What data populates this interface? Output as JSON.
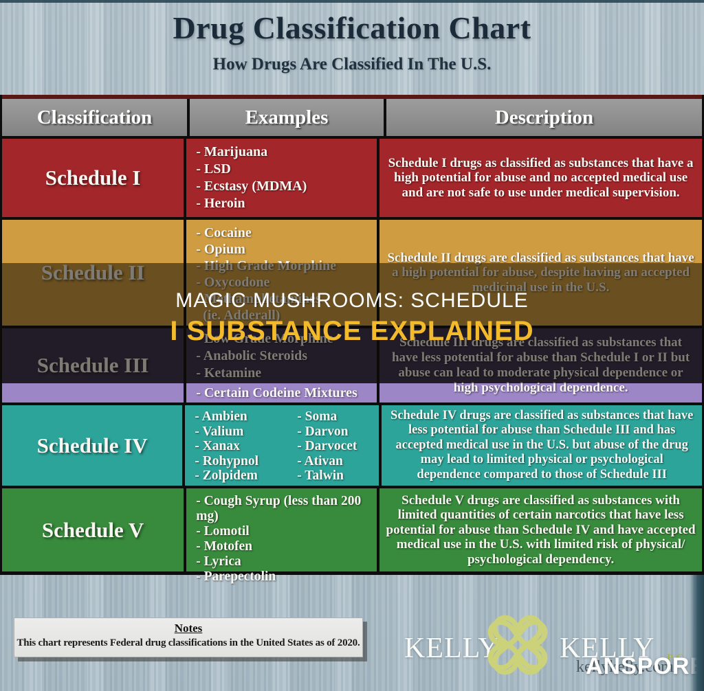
{
  "title": "Drug Classification Chart",
  "subtitle": "How Drugs Are Classified In The U.S.",
  "chart_data": {
    "type": "table",
    "columns": [
      "Classification",
      "Examples",
      "Description"
    ],
    "rows": [
      {
        "classification": "Schedule I",
        "color": "#a3262b",
        "examples": [
          "- Marijuana",
          "- LSD",
          "- Ecstasy (MDMA)",
          "- Heroin"
        ],
        "description": "Schedule I drugs as classified as substances that have a high potential for abuse and no accepted medical use and are not safe to use under medical supervision."
      },
      {
        "classification": "Schedule II",
        "color": "#d09c41",
        "examples": [
          "- Cocaine",
          "- Opium",
          "- High Grade Morphine",
          "- Oxycodone",
          "- Methamphetamines",
          "  (ie. Adderall)"
        ],
        "description": "Schedule II drugs are classified as substances that have a high potential for abuse, despite having an accepted medicinal use in the U.S."
      },
      {
        "classification": "Schedule III",
        "color": "#3a3052",
        "band_color": "#9d86c6",
        "examples": [
          "- Low Grade Morphine",
          "- Anabolic Steroids",
          "- Ketamine",
          "- Certain Codeine Mixtures"
        ],
        "description": "Schedule III drugs are classified as substances that have less potential for abuse than Schedule I or II but abuse can lead to moderate physical dependence or high psychological dependence."
      },
      {
        "classification": "Schedule IV",
        "color": "#2da49a",
        "examples": [
          "- Ambien",
          "- Valium",
          "- Xanax",
          "- Rohypnol",
          "- Zolpidem"
        ],
        "examples2": [
          "- Soma",
          "- Darvon",
          "- Darvocet",
          "- Ativan",
          "- Talwin"
        ],
        "description": "Schedule IV drugs are classified as substances that have less potential for abuse than Schedule III and has accepted medical use in the U.S. but abuse of the drug may lead to limited physical or psychological dependence compared to those of Schedule III"
      },
      {
        "classification": "Schedule V",
        "color": "#388a3c",
        "examples": [
          "- Cough Syrup (less than 200 mg)",
          "- Lomotil",
          "- Motofen",
          "- Lyrica",
          "- Parepectolin"
        ],
        "description": "Schedule V drugs are classified as substances with limited quantities of certain narcotics  that have less potential for abuse than Schedule IV and have accepted medical use in the U.S. with limited risk of physical/ psychological dependency."
      }
    ]
  },
  "overlay": {
    "line1": "MAGIC MUSHROOMS: SCHEDULE",
    "line2": "I SUBSTANCE EXPLAINED",
    "line2_color": "#f3bb2b",
    "scrim_color": "rgba(14,10,2,0.52)"
  },
  "notes": {
    "heading": "Notes",
    "text": "This chart represents Federal drug classifications in the United States as of 2020."
  },
  "logo": {
    "left": "KELLY",
    "right": "KELLY",
    "suffix": "P.C.",
    "website": "kellykelly.com",
    "watermark": "ANSPORE",
    "clover_color": "#ccd27a"
  },
  "colors": {
    "page_background": "#b5c4cd",
    "header_bg": "#8d8d8d",
    "maroon_bar": "#5a1716",
    "title_text": "#1c2b3a",
    "table_border": "#0d0d0d"
  }
}
